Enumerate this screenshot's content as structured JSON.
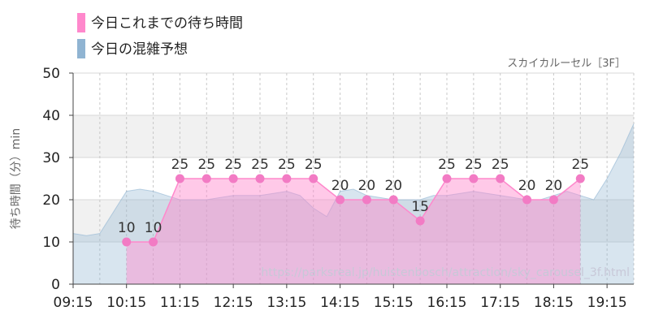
{
  "chart_data": {
    "type": "area",
    "subtitle": "スカイカルーセル［3F］",
    "ylabel": "待ち時間（分）min",
    "ylim": [
      0,
      50
    ],
    "y_ticks": [
      "0",
      "10",
      "20",
      "30",
      "40",
      "50"
    ],
    "x_ticks": [
      "09:15",
      "10:15",
      "11:15",
      "12:15",
      "13:15",
      "14:15",
      "15:15",
      "16:15",
      "17:15",
      "18:15",
      "19:15"
    ],
    "legend": {
      "position": "top-left",
      "items": [
        {
          "name": "今日これまでの待ち時間",
          "color": "#ff88cc"
        },
        {
          "name": "今日の混雑予想",
          "color": "#90b4d2"
        }
      ]
    },
    "series": [
      {
        "name": "今日これまでの待ち時間",
        "color": "#ff88cc",
        "x": [
          "10:15",
          "10:45",
          "11:15",
          "11:45",
          "12:15",
          "12:45",
          "13:15",
          "13:45",
          "14:15",
          "14:45",
          "15:15",
          "15:45",
          "16:15",
          "16:45",
          "17:15",
          "17:45",
          "18:15",
          "18:45"
        ],
        "values": [
          10,
          10,
          25,
          25,
          25,
          25,
          25,
          25,
          20,
          20,
          20,
          15,
          25,
          25,
          25,
          20,
          20,
          25
        ],
        "labels": [
          "10",
          "10",
          "25",
          "25",
          "25",
          "25",
          "25",
          "25",
          "20",
          "20",
          "20",
          "15",
          "25",
          "25",
          "25",
          "20",
          "20",
          "25"
        ]
      },
      {
        "name": "今日の混雑予想",
        "color": "#90b4d2",
        "x": [
          "09:15",
          "09:30",
          "09:45",
          "10:00",
          "10:15",
          "10:30",
          "10:45",
          "11:00",
          "11:15",
          "11:30",
          "11:45",
          "12:00",
          "12:15",
          "12:30",
          "12:45",
          "13:00",
          "13:15",
          "13:30",
          "13:45",
          "14:00",
          "14:15",
          "14:30",
          "14:45",
          "15:00",
          "15:15",
          "15:30",
          "15:45",
          "16:00",
          "16:15",
          "16:30",
          "16:45",
          "17:00",
          "17:15",
          "17:30",
          "17:45",
          "18:00",
          "18:15",
          "18:30",
          "18:45",
          "19:00",
          "19:15",
          "19:30",
          "19:45"
        ],
        "values": [
          12,
          11.5,
          12,
          17,
          22,
          22.5,
          22,
          21,
          20,
          20,
          20,
          20.5,
          21,
          21,
          21,
          21.5,
          22,
          21,
          18,
          16,
          22,
          22.5,
          21,
          20.5,
          20,
          20,
          20,
          21,
          21,
          21.5,
          22,
          21.5,
          21,
          20.5,
          20,
          20,
          21,
          22,
          21,
          20,
          25,
          31,
          38
        ]
      }
    ],
    "annotation": "https://parksreal.jp/huistenbosch/attraction/sky_carousel_3f.html",
    "grid": true,
    "bands": [
      [
        10,
        20
      ],
      [
        30,
        40
      ]
    ]
  }
}
